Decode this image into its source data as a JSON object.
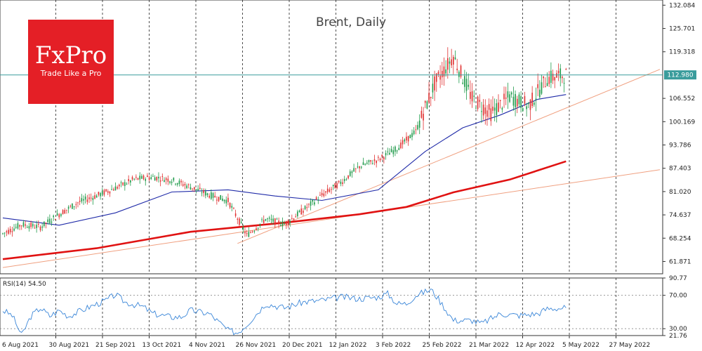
{
  "brand": {
    "logo_text": "FxPro",
    "tagline": "Trade Like a Pro",
    "color": "#e41f26"
  },
  "chart_data": [
    {
      "type": "candlestick",
      "title": "Brent, Daily",
      "ylim": [
        58.5,
        133.5
      ],
      "y_ticks": [
        "132.084",
        "125.701",
        "119.318",
        "112.980",
        "106.552",
        "100.169",
        "93.786",
        "87.403",
        "81.020",
        "74.637",
        "68.254",
        "61.871"
      ],
      "current_price": "112.980",
      "x_labels": [
        "6 Aug 2021",
        "30 Aug 2021",
        "21 Sep 2021",
        "13 Oct 2021",
        "4 Nov 2021",
        "26 Nov 2021",
        "20 Dec 2021",
        "12 Jan 2022",
        "3 Feb 2022",
        "25 Feb 2022",
        "21 Mar 2022",
        "12 Apr 2022",
        "5 May 2022",
        "27 May 2022"
      ],
      "series": [
        {
          "name": "",
          "kind": "candles",
          "x": [
            0,
            10,
            20,
            30,
            40,
            50,
            60,
            70,
            80,
            90,
            100,
            110,
            120,
            130,
            140,
            150,
            160,
            170,
            180,
            190,
            200,
            210,
            220,
            230,
            240,
            250,
            260,
            270,
            280,
            290,
            300
          ],
          "close": [
            69.5,
            72.0,
            71.3,
            74.8,
            78.0,
            79.9,
            82.0,
            84.4,
            85.0,
            84.2,
            82.3,
            80.1,
            78.5,
            69.0,
            73.5,
            72.1,
            75.9,
            80.0,
            83.5,
            87.9,
            89.8,
            92.8,
            97.5,
            110.5,
            118.0,
            106.5,
            102.5,
            107.0,
            104.5,
            112.0,
            113.0
          ]
        },
        {
          "name": "",
          "kind": "moving-average",
          "color": "#1f2aa8",
          "points": [
            [
              0,
              73.8
            ],
            [
              30,
              71.8
            ],
            [
              60,
              75.2
            ],
            [
              90,
              80.9
            ],
            [
              120,
              81.5
            ],
            [
              145,
              79.8
            ],
            [
              170,
              78.6
            ],
            [
              200,
              81.5
            ],
            [
              225,
              92.0
            ],
            [
              245,
              98.5
            ],
            [
              265,
              102.0
            ],
            [
              285,
              106.3
            ],
            [
              300,
              107.6
            ]
          ]
        },
        {
          "name": "",
          "kind": "moving-average",
          "color": "#e01212",
          "points": [
            [
              0,
              62.5
            ],
            [
              50,
              65.5
            ],
            [
              100,
              70.0
            ],
            [
              150,
              72.5
            ],
            [
              190,
              74.8
            ],
            [
              215,
              76.8
            ],
            [
              240,
              80.8
            ],
            [
              270,
              84.3
            ],
            [
              300,
              89.3
            ]
          ]
        }
      ],
      "trendlines": [
        {
          "color": "#f0a080",
          "points": [
            [
              0,
              60.2
            ],
            [
              350,
              87.0
            ]
          ]
        },
        {
          "color": "#f0a080",
          "points": [
            [
              125,
              66.8
            ],
            [
              350,
              114.5
            ]
          ]
        }
      ],
      "vertical_grid": "dotted",
      "price_line": "112.980"
    },
    {
      "type": "line",
      "title": "RSI(14) 54.50",
      "ylim": [
        21.76,
        90.77
      ],
      "y_ticks": [
        "90.77",
        "70.00",
        "30.00",
        "21.76"
      ],
      "levels": [
        70,
        30
      ],
      "series": [
        {
          "name": "",
          "color": "#3a86d8",
          "points": [
            [
              0,
              52
            ],
            [
              5,
              46
            ],
            [
              10,
              22
            ],
            [
              15,
              45
            ],
            [
              20,
              55
            ],
            [
              25,
              45
            ],
            [
              30,
              52
            ],
            [
              35,
              45
            ],
            [
              45,
              55
            ],
            [
              55,
              64
            ],
            [
              60,
              71
            ],
            [
              65,
              62
            ],
            [
              75,
              56
            ],
            [
              80,
              48
            ],
            [
              90,
              44
            ],
            [
              95,
              44
            ],
            [
              100,
              52
            ],
            [
              110,
              48
            ],
            [
              120,
              28
            ],
            [
              125,
              25
            ],
            [
              130,
              35
            ],
            [
              140,
              60
            ],
            [
              150,
              55
            ],
            [
              160,
              62
            ],
            [
              170,
              64
            ],
            [
              180,
              68
            ],
            [
              190,
              66
            ],
            [
              200,
              68
            ],
            [
              205,
              72
            ],
            [
              210,
              60
            ],
            [
              215,
              60
            ],
            [
              220,
              70
            ],
            [
              228,
              77
            ],
            [
              232,
              66
            ],
            [
              235,
              56
            ],
            [
              240,
              40
            ],
            [
              250,
              40
            ],
            [
              255,
              36
            ],
            [
              265,
              48
            ],
            [
              275,
              46
            ],
            [
              285,
              48
            ],
            [
              290,
              54
            ],
            [
              300,
              55
            ]
          ]
        }
      ]
    }
  ]
}
